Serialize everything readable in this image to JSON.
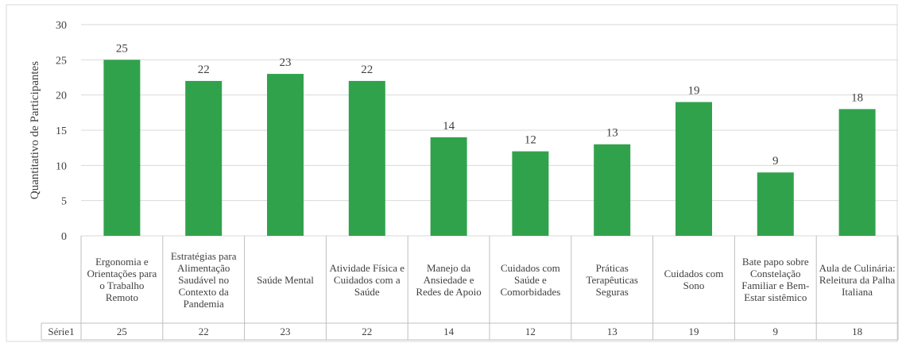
{
  "chart_data": {
    "type": "bar",
    "y_label": "Quantitativo de Participantes",
    "categories": [
      "Ergonomia e Orientações para o Trabalho Remoto",
      "Estratégias para Alimentação Saudável no Contexto da Pandemia",
      "Saúde Mental",
      "Atividade Física e Cuidados com a Saúde",
      "Manejo da Ansiedade e Redes de Apoio",
      "Cuidados com Saúde e Comorbidades",
      "Práticas Terapêuticas Seguras",
      "Cuidados com Sono",
      "Bate papo sobre Constelação Familiar e Bem-Estar sistêmico",
      "Aula de Culinária: Releitura da Palha Italiana"
    ],
    "series": [
      {
        "name": "Série1",
        "color": "#31a24c",
        "values": [
          25,
          22,
          23,
          22,
          14,
          12,
          13,
          19,
          9,
          18
        ]
      }
    ],
    "ylim": [
      0,
      30
    ],
    "yticks": [
      0,
      5,
      10,
      15,
      20,
      25,
      30
    ],
    "grid": true
  }
}
